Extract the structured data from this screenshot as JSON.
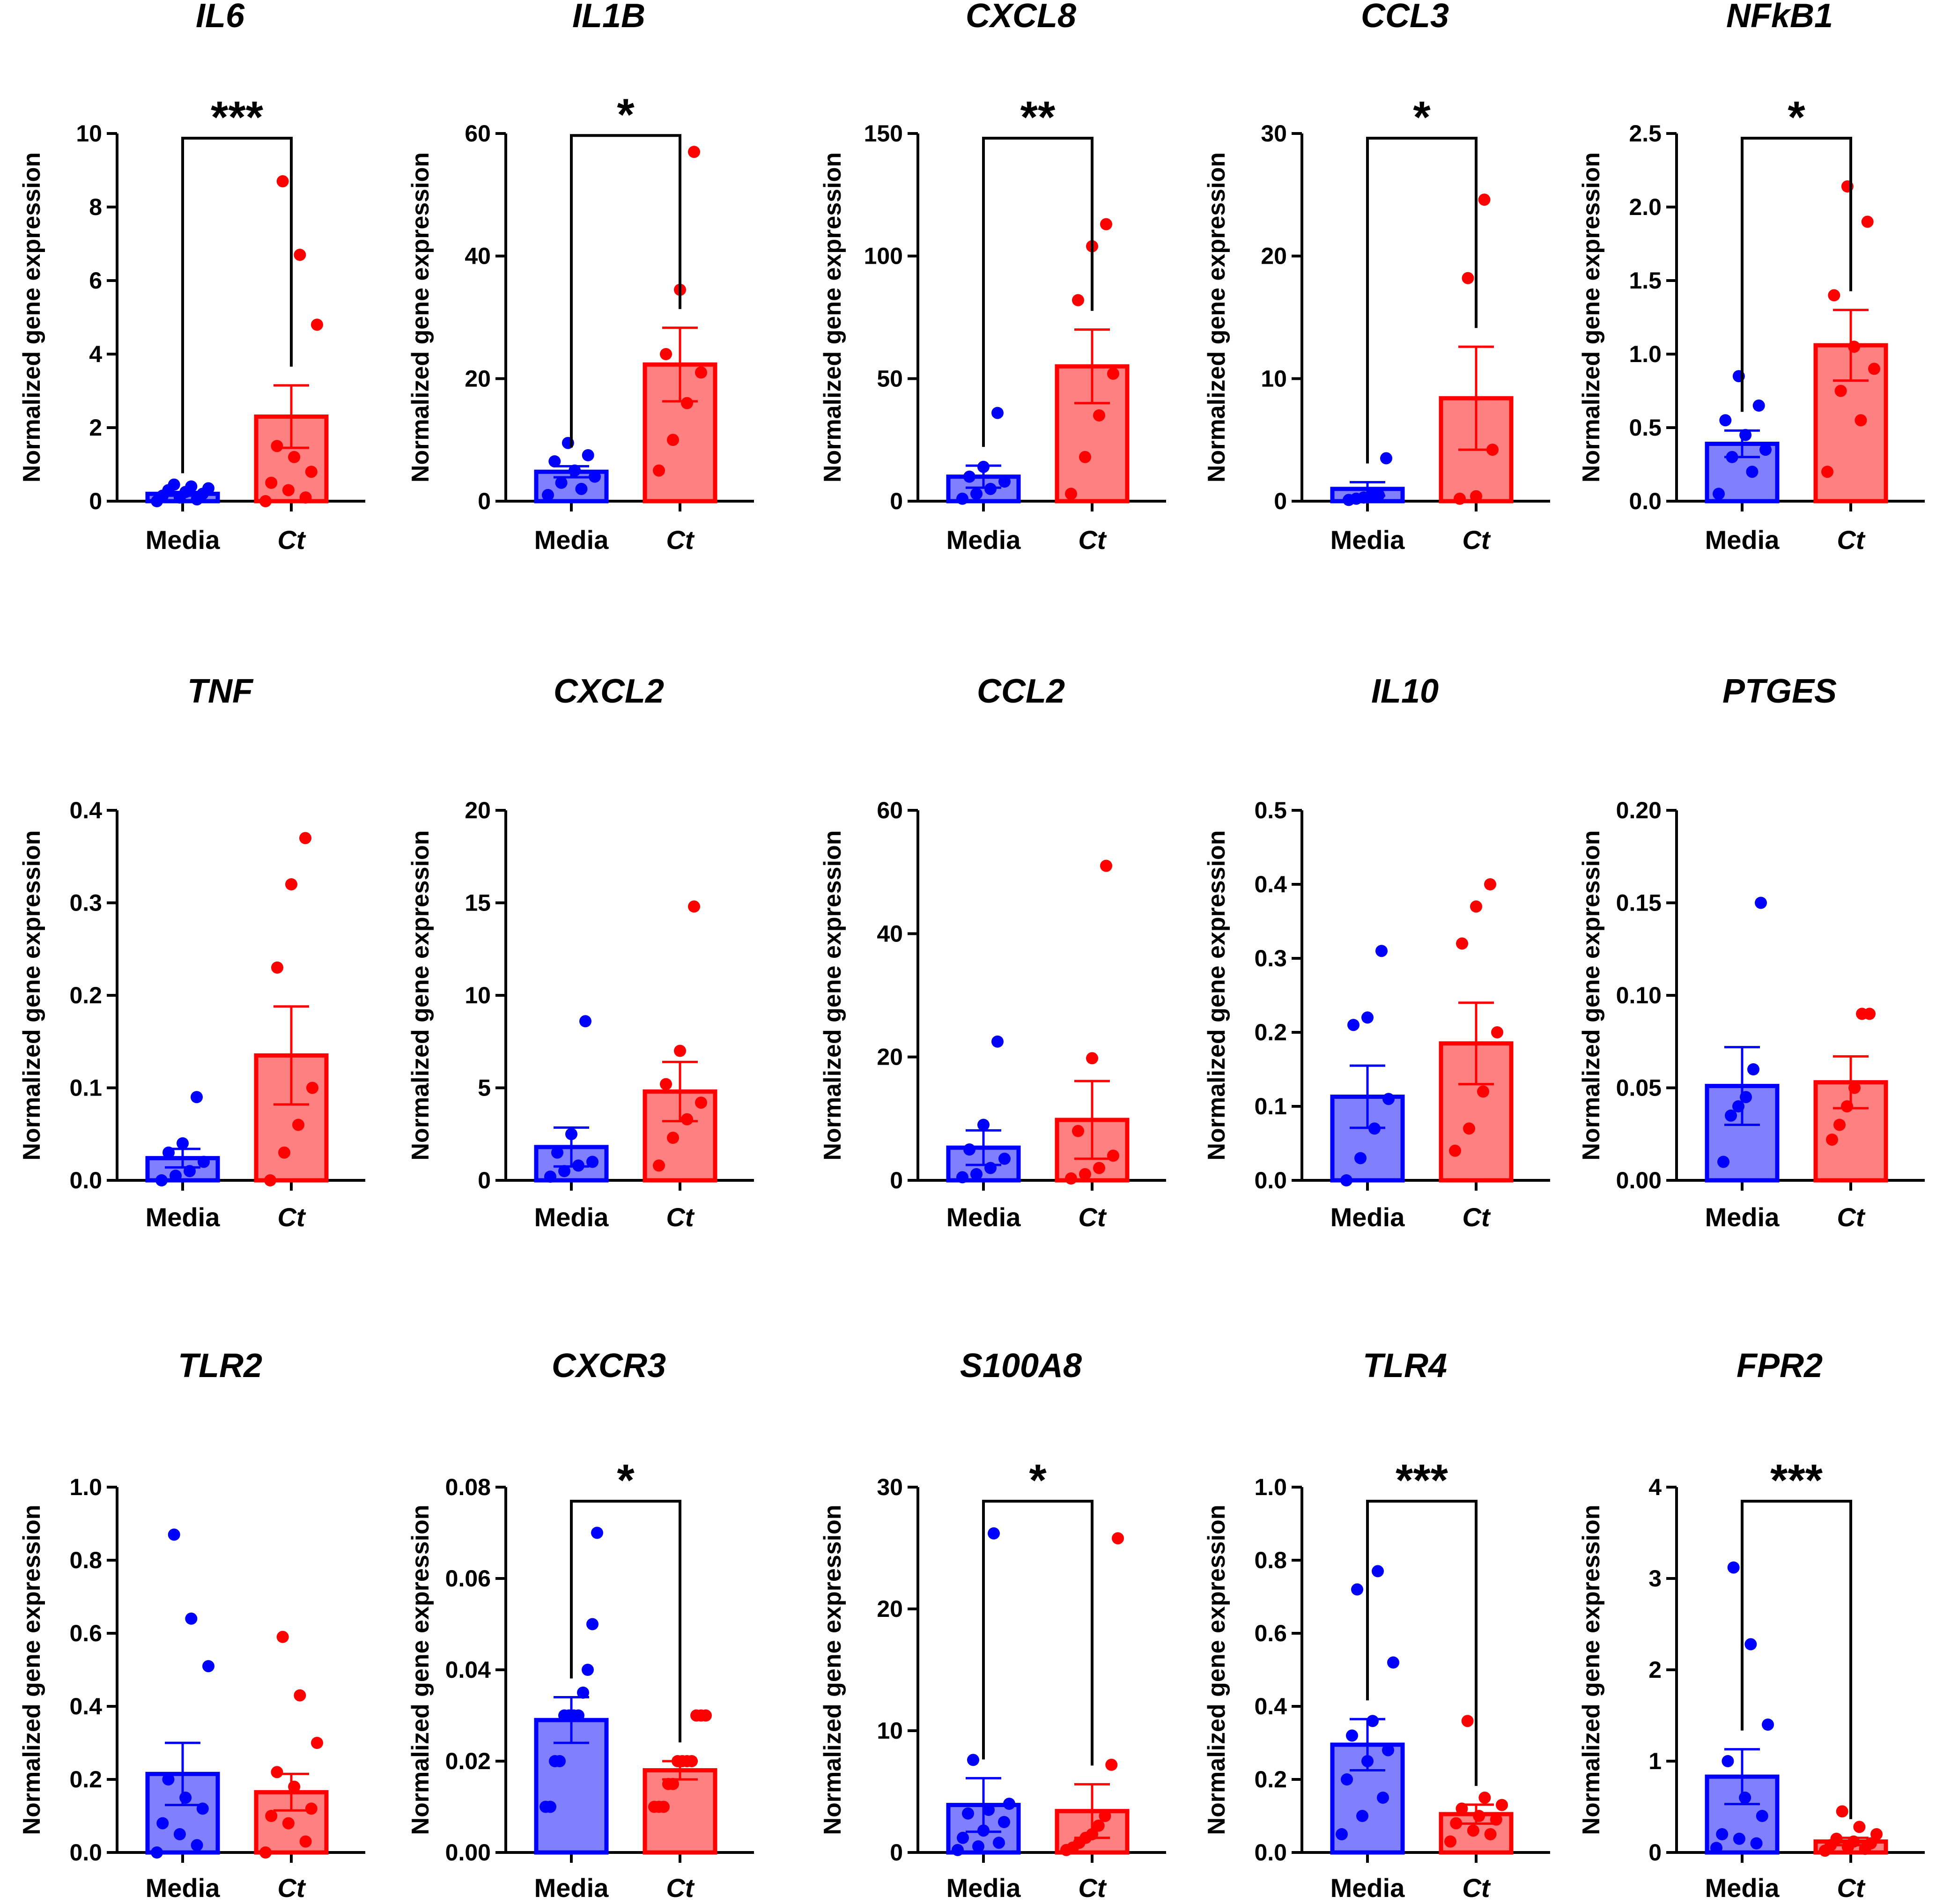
{
  "colors": {
    "media_fill": "#8080ff",
    "media_stroke": "#0000ff",
    "ct_fill": "#ff8080",
    "ct_stroke": "#ff0000",
    "axis": "#000000"
  },
  "chart_data": [
    {
      "type": "bar",
      "title": "IL6",
      "ylabel": "Normalized gene expression",
      "categories": [
        "Media",
        "Ct"
      ],
      "ylim": [
        0,
        10
      ],
      "yticks": [
        0,
        2,
        4,
        6,
        8,
        10
      ],
      "ytick_labels": [
        "0",
        "2",
        "4",
        "6",
        "8",
        "10"
      ],
      "series": [
        {
          "name": "Media",
          "mean": 0.2,
          "sem": 0.05,
          "points": [
            0.0,
            0.05,
            0.1,
            0.15,
            0.2,
            0.25,
            0.3,
            0.35,
            0.4,
            0.45
          ]
        },
        {
          "name": "Ct",
          "mean": 2.3,
          "sem": 0.85,
          "points": [
            0.0,
            0.1,
            0.3,
            0.5,
            0.8,
            1.2,
            1.5,
            4.8,
            6.7,
            8.7
          ]
        }
      ],
      "significance": "***"
    },
    {
      "type": "bar",
      "title": "IL1B",
      "ylabel": "Normalized gene expression",
      "categories": [
        "Media",
        "Ct"
      ],
      "ylim": [
        0,
        60
      ],
      "yticks": [
        0,
        20,
        40,
        60
      ],
      "ytick_labels": [
        "0",
        "20",
        "40",
        "60"
      ],
      "series": [
        {
          "name": "Media",
          "mean": 4.8,
          "sem": 0.9,
          "points": [
            1.0,
            2.0,
            3.0,
            4.0,
            5.0,
            6.5,
            7.5,
            9.5
          ]
        },
        {
          "name": "Ct",
          "mean": 22.3,
          "sem": 6.0,
          "points": [
            5.0,
            10.0,
            16.0,
            21.0,
            24.0,
            34.5,
            57.0
          ]
        }
      ],
      "significance": "*"
    },
    {
      "type": "bar",
      "title": "CXCL8",
      "ylabel": "Normalized gene expression",
      "categories": [
        "Media",
        "Ct"
      ],
      "ylim": [
        0,
        150
      ],
      "yticks": [
        0,
        50,
        100,
        150
      ],
      "ytick_labels": [
        "0",
        "50",
        "100",
        "150"
      ],
      "series": [
        {
          "name": "Media",
          "mean": 10.0,
          "sem": 4.5,
          "points": [
            1.0,
            3.0,
            5.0,
            8.0,
            10.0,
            14.0,
            36.0
          ]
        },
        {
          "name": "Ct",
          "mean": 55.0,
          "sem": 15.0,
          "points": [
            3.0,
            18.0,
            35.0,
            52.0,
            82.0,
            104.0,
            113.0
          ]
        }
      ],
      "significance": "**"
    },
    {
      "type": "bar",
      "title": "CCL3",
      "ylabel": "Normalized gene expression",
      "categories": [
        "Media",
        "Ct"
      ],
      "ylim": [
        0,
        30
      ],
      "yticks": [
        0,
        10,
        20,
        30
      ],
      "ytick_labels": [
        "0",
        "10",
        "20",
        "30"
      ],
      "series": [
        {
          "name": "Media",
          "mean": 1.0,
          "sem": 0.55,
          "points": [
            0.1,
            0.2,
            0.3,
            0.4,
            0.5,
            3.5
          ]
        },
        {
          "name": "Ct",
          "mean": 8.4,
          "sem": 4.2,
          "points": [
            0.2,
            0.4,
            4.2,
            18.2,
            24.6
          ]
        }
      ],
      "significance": "*"
    },
    {
      "type": "bar",
      "title": "NFkB1",
      "ylabel": "Normalized gene expression",
      "categories": [
        "Media",
        "Ct"
      ],
      "ylim": [
        0,
        2.5
      ],
      "yticks": [
        0,
        0.5,
        1.0,
        1.5,
        2.0,
        2.5
      ],
      "ytick_labels": [
        "0.0",
        "0.5",
        "1.0",
        "1.5",
        "2.0",
        "2.5"
      ],
      "series": [
        {
          "name": "Media",
          "mean": 0.39,
          "sem": 0.09,
          "points": [
            0.05,
            0.2,
            0.3,
            0.35,
            0.45,
            0.55,
            0.65,
            0.85
          ]
        },
        {
          "name": "Ct",
          "mean": 1.06,
          "sem": 0.24,
          "points": [
            0.2,
            0.55,
            0.75,
            0.9,
            1.05,
            1.4,
            1.9,
            2.14
          ]
        }
      ],
      "significance": "*"
    },
    {
      "type": "bar",
      "title": "TNF",
      "ylabel": "Normalized gene expression",
      "categories": [
        "Media",
        "Ct"
      ],
      "ylim": [
        0,
        0.4
      ],
      "yticks": [
        0,
        0.1,
        0.2,
        0.3,
        0.4
      ],
      "ytick_labels": [
        "0.0",
        "0.1",
        "0.2",
        "0.3",
        "0.4"
      ],
      "series": [
        {
          "name": "Media",
          "mean": 0.024,
          "sem": 0.01,
          "points": [
            0.0,
            0.005,
            0.01,
            0.02,
            0.03,
            0.04,
            0.09
          ]
        },
        {
          "name": "Ct",
          "mean": 0.135,
          "sem": 0.053,
          "points": [
            0.0,
            0.03,
            0.06,
            0.1,
            0.23,
            0.32,
            0.37
          ]
        }
      ]
    },
    {
      "type": "bar",
      "title": "CXCL2",
      "ylabel": "Normalized gene expression",
      "categories": [
        "Media",
        "Ct"
      ],
      "ylim": [
        0,
        20
      ],
      "yticks": [
        0,
        5,
        10,
        15,
        20
      ],
      "ytick_labels": [
        "0",
        "5",
        "10",
        "15",
        "20"
      ],
      "series": [
        {
          "name": "Media",
          "mean": 1.8,
          "sem": 1.05,
          "points": [
            0.2,
            0.5,
            0.8,
            1.0,
            1.5,
            2.5,
            8.6
          ]
        },
        {
          "name": "Ct",
          "mean": 4.8,
          "sem": 1.6,
          "points": [
            0.8,
            2.3,
            3.3,
            4.2,
            5.2,
            7.0,
            14.8
          ]
        }
      ]
    },
    {
      "type": "bar",
      "title": "CCL2",
      "ylabel": "Normalized gene expression",
      "categories": [
        "Media",
        "Ct"
      ],
      "ylim": [
        0,
        60
      ],
      "yticks": [
        0,
        20,
        40,
        60
      ],
      "ytick_labels": [
        "0",
        "20",
        "40",
        "60"
      ],
      "series": [
        {
          "name": "Media",
          "mean": 5.3,
          "sem": 2.8,
          "points": [
            0.5,
            1.0,
            2.0,
            3.5,
            5.0,
            9.0,
            22.5
          ]
        },
        {
          "name": "Ct",
          "mean": 9.8,
          "sem": 6.3,
          "points": [
            0.3,
            1.0,
            2.0,
            4.0,
            8.0,
            19.8,
            51.0
          ]
        }
      ]
    },
    {
      "type": "bar",
      "title": "IL10",
      "ylabel": "Normalized gene expression",
      "categories": [
        "Media",
        "Ct"
      ],
      "ylim": [
        0,
        0.5
      ],
      "yticks": [
        0,
        0.1,
        0.2,
        0.3,
        0.4,
        0.5
      ],
      "ytick_labels": [
        "0.0",
        "0.1",
        "0.2",
        "0.3",
        "0.4",
        "0.5"
      ],
      "series": [
        {
          "name": "Media",
          "mean": 0.113,
          "sem": 0.042,
          "points": [
            0.0,
            0.03,
            0.07,
            0.11,
            0.21,
            0.22,
            0.31
          ]
        },
        {
          "name": "Ct",
          "mean": 0.185,
          "sem": 0.055,
          "points": [
            0.04,
            0.07,
            0.12,
            0.2,
            0.32,
            0.37,
            0.4
          ]
        }
      ]
    },
    {
      "type": "bar",
      "title": "PTGES",
      "ylabel": "Normalized gene expression",
      "categories": [
        "Media",
        "Ct"
      ],
      "ylim": [
        0,
        0.2
      ],
      "yticks": [
        0,
        0.05,
        0.1,
        0.15,
        0.2
      ],
      "ytick_labels": [
        "0.00",
        "0.05",
        "0.10",
        "0.15",
        "0.20"
      ],
      "series": [
        {
          "name": "Media",
          "mean": 0.051,
          "sem": 0.021,
          "points": [
            0.01,
            0.035,
            0.04,
            0.045,
            0.06,
            0.15
          ]
        },
        {
          "name": "Ct",
          "mean": 0.053,
          "sem": 0.014,
          "points": [
            0.022,
            0.03,
            0.04,
            0.05,
            0.09,
            0.09
          ]
        }
      ]
    },
    {
      "type": "bar",
      "title": "TLR2",
      "ylabel": "Normalized gene expression",
      "categories": [
        "Media",
        "Ct"
      ],
      "ylim": [
        0,
        1.0
      ],
      "yticks": [
        0,
        0.2,
        0.4,
        0.6,
        0.8,
        1.0
      ],
      "ytick_labels": [
        "0.0",
        "0.2",
        "0.4",
        "0.6",
        "0.8",
        "1.0"
      ],
      "series": [
        {
          "name": "Media",
          "mean": 0.215,
          "sem": 0.085,
          "points": [
            0.0,
            0.02,
            0.05,
            0.08,
            0.12,
            0.15,
            0.2,
            0.51,
            0.64,
            0.87
          ]
        },
        {
          "name": "Ct",
          "mean": 0.165,
          "sem": 0.05,
          "points": [
            0.0,
            0.03,
            0.08,
            0.1,
            0.12,
            0.18,
            0.22,
            0.3,
            0.43,
            0.59
          ]
        }
      ]
    },
    {
      "type": "bar",
      "title": "CXCR3",
      "ylabel": "Normalized gene expression",
      "categories": [
        "Media",
        "Ct"
      ],
      "ylim": [
        0,
        0.08
      ],
      "yticks": [
        0,
        0.02,
        0.04,
        0.06,
        0.08
      ],
      "ytick_labels": [
        "0.00",
        "0.02",
        "0.04",
        "0.06",
        "0.08"
      ],
      "series": [
        {
          "name": "Media",
          "mean": 0.029,
          "sem": 0.005,
          "points": [
            0.01,
            0.01,
            0.02,
            0.02,
            0.03,
            0.03,
            0.03,
            0.03,
            0.035,
            0.04,
            0.05,
            0.07
          ]
        },
        {
          "name": "Ct",
          "mean": 0.018,
          "sem": 0.002,
          "points": [
            0.01,
            0.01,
            0.01,
            0.015,
            0.015,
            0.02,
            0.02,
            0.02,
            0.02,
            0.03,
            0.03,
            0.03
          ]
        }
      ],
      "significance": "*"
    },
    {
      "type": "bar",
      "title": "S100A8",
      "ylabel": "Normalized gene expression",
      "categories": [
        "Media",
        "Ct"
      ],
      "ylim": [
        0,
        30
      ],
      "yticks": [
        0,
        10,
        20,
        30
      ],
      "ytick_labels": [
        "0",
        "10",
        "20",
        "30"
      ],
      "series": [
        {
          "name": "Media",
          "mean": 3.9,
          "sem": 2.2,
          "points": [
            0.2,
            0.5,
            0.8,
            1.2,
            1.8,
            2.5,
            3.2,
            3.5,
            4.0,
            7.6,
            26.2
          ]
        },
        {
          "name": "Ct",
          "mean": 3.4,
          "sem": 2.2,
          "points": [
            0.2,
            0.4,
            0.8,
            1.2,
            1.5,
            2.2,
            3.0,
            7.2,
            25.8
          ]
        }
      ],
      "significance": "*"
    },
    {
      "type": "bar",
      "title": "TLR4",
      "ylabel": "Normalized gene expression",
      "categories": [
        "Media",
        "Ct"
      ],
      "ylim": [
        0,
        1.0
      ],
      "yticks": [
        0,
        0.2,
        0.4,
        0.6,
        0.8,
        1.0
      ],
      "ytick_labels": [
        "0.0",
        "0.2",
        "0.4",
        "0.6",
        "0.8",
        "1.0"
      ],
      "series": [
        {
          "name": "Media",
          "mean": 0.295,
          "sem": 0.07,
          "points": [
            0.05,
            0.1,
            0.15,
            0.2,
            0.25,
            0.28,
            0.32,
            0.36,
            0.52,
            0.72,
            0.77
          ]
        },
        {
          "name": "Ct",
          "mean": 0.105,
          "sem": 0.026,
          "points": [
            0.03,
            0.05,
            0.06,
            0.08,
            0.09,
            0.1,
            0.12,
            0.13,
            0.15,
            0.36
          ]
        }
      ],
      "significance": "***"
    },
    {
      "type": "bar",
      "title": "FPR2",
      "ylabel": "Normalized gene expression",
      "categories": [
        "Media",
        "Ct"
      ],
      "ylim": [
        0,
        4
      ],
      "yticks": [
        0,
        1,
        2,
        3,
        4
      ],
      "ytick_labels": [
        "0",
        "1",
        "2",
        "3",
        "4"
      ],
      "series": [
        {
          "name": "Media",
          "mean": 0.83,
          "sem": 0.3,
          "points": [
            0.05,
            0.1,
            0.15,
            0.2,
            0.4,
            0.6,
            1.0,
            1.4,
            2.28,
            3.12
          ]
        },
        {
          "name": "Ct",
          "mean": 0.12,
          "sem": 0.04,
          "points": [
            0.02,
            0.04,
            0.06,
            0.08,
            0.1,
            0.12,
            0.15,
            0.2,
            0.28,
            0.45
          ]
        }
      ],
      "significance": "***"
    }
  ]
}
